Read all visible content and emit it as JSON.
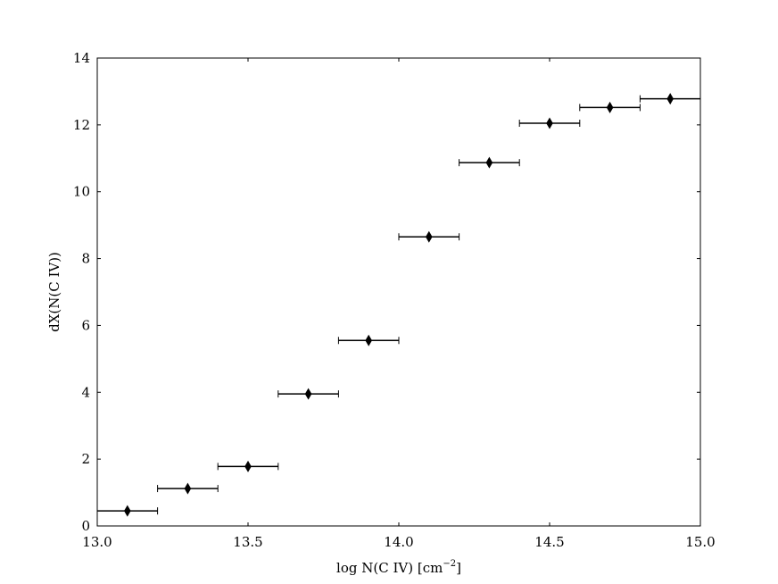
{
  "chart_data": {
    "type": "scatter",
    "xlabel": "log N(C IV) [cm",
    "xlabel_superscript": "−2",
    "xlabel_suffix": "]",
    "ylabel": "dX(N(C IV))",
    "xlim": [
      13.0,
      15.0
    ],
    "ylim": [
      0,
      14
    ],
    "xticks": [
      13.0,
      13.5,
      14.0,
      14.5,
      15.0
    ],
    "xtick_labels": [
      "13.0",
      "13.5",
      "14.0",
      "14.5",
      "15.0"
    ],
    "yticks": [
      0,
      2,
      4,
      6,
      8,
      10,
      12,
      14
    ],
    "ytick_labels": [
      "0",
      "2",
      "4",
      "6",
      "8",
      "10",
      "12",
      "14"
    ],
    "grid": false,
    "marker": "thin-diamond",
    "color": "#000000",
    "series": [
      {
        "x": [
          13.1,
          13.3,
          13.5,
          13.7,
          13.9,
          14.1,
          14.3,
          14.5,
          14.7,
          14.9
        ],
        "y": [
          0.45,
          1.12,
          1.78,
          3.95,
          5.55,
          8.65,
          10.87,
          12.05,
          12.52,
          12.78
        ],
        "x_err": [
          0.1,
          0.1,
          0.1,
          0.1,
          0.1,
          0.1,
          0.1,
          0.1,
          0.1,
          0.1
        ]
      }
    ]
  }
}
